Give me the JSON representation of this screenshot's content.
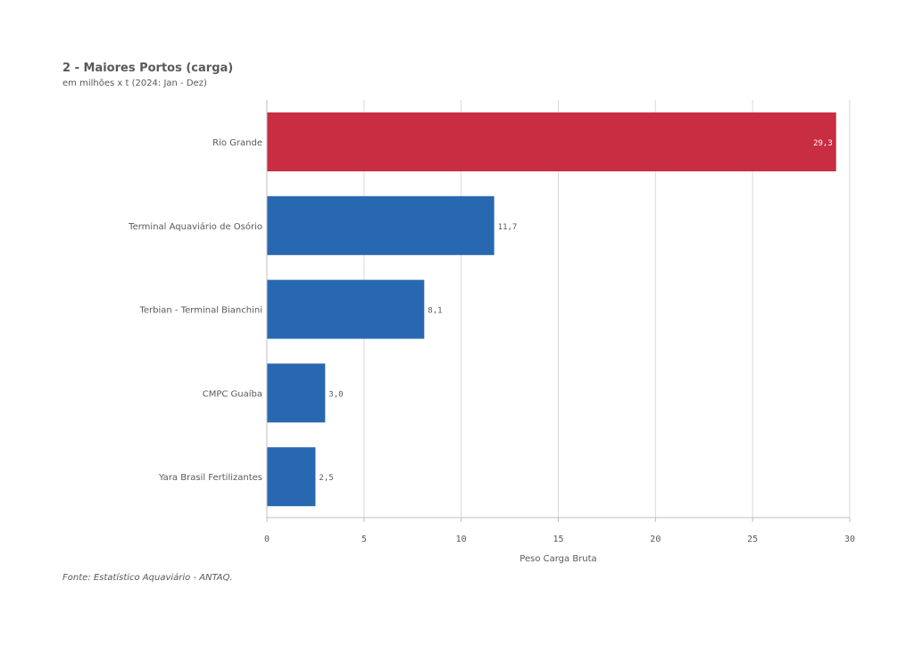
{
  "header": {
    "title": "2 - Maiores Portos (carga)",
    "subtitle": "em milhões x t (2024: Jan - Dez)"
  },
  "footer": {
    "source": "Fonte: Estatístico Aquaviário - ANTAQ."
  },
  "chart_data": {
    "type": "bar",
    "orientation": "horizontal",
    "title": "2 - Maiores Portos (carga)",
    "subtitle": "em milhões x t (2024: Jan - Dez)",
    "categories": [
      "Rio Grande",
      "Terminal Aquaviário de Osório",
      "Terbian - Terminal Bianchini",
      "CMPC Guaíba",
      "Yara Brasil Fertilizantes"
    ],
    "values": [
      29.3,
      11.7,
      8.1,
      3.0,
      2.5
    ],
    "value_labels": [
      "29,3",
      "11,7",
      "8,1",
      "3,0",
      "2,5"
    ],
    "colors": [
      "#c92d42",
      "#2868b1",
      "#2868b1",
      "#2868b1",
      "#2868b1"
    ],
    "xlabel": "Peso Carga Bruta",
    "ylabel": "",
    "xlim": [
      0,
      30
    ],
    "xticks": [
      0,
      5,
      10,
      15,
      20,
      25,
      30
    ],
    "xtick_labels": [
      "0",
      "5",
      "10",
      "15",
      "20",
      "25",
      "30"
    ],
    "grid": true,
    "legend": "none"
  }
}
